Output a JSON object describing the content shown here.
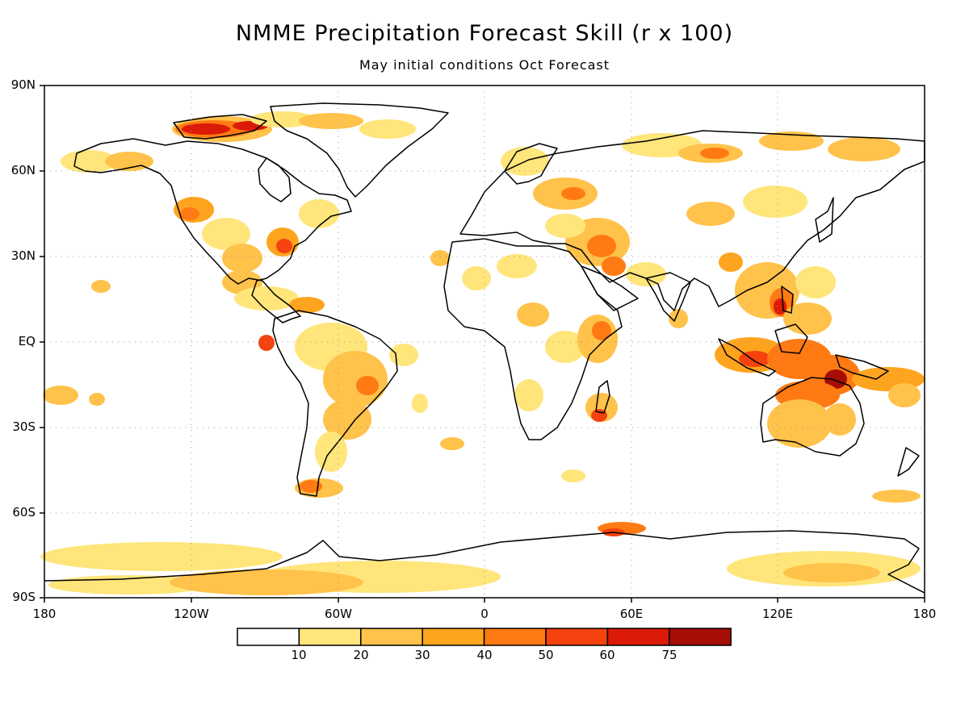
{
  "title": "NMME Precipitation Forecast Skill (r x 100)",
  "subtitle": "May initial conditions  Oct Forecast",
  "lat_labels": [
    "90N",
    "60N",
    "30N",
    "EQ",
    "30S",
    "60S",
    "90S"
  ],
  "lon_labels": [
    "180",
    "120W",
    "60W",
    "0",
    "60E",
    "120E",
    "180"
  ],
  "colorbar": {
    "labels": [
      "10",
      "20",
      "30",
      "40",
      "50",
      "60",
      "75"
    ],
    "colors": [
      "#ffffff",
      "#ffe57a",
      "#ffc24a",
      "#ffa41e",
      "#ff7a12",
      "#f5420e",
      "#dc1a08",
      "#a50d05"
    ]
  },
  "colors": {
    "land": "#ffffff",
    "coast": "#000000",
    "grid": "#999999"
  }
}
